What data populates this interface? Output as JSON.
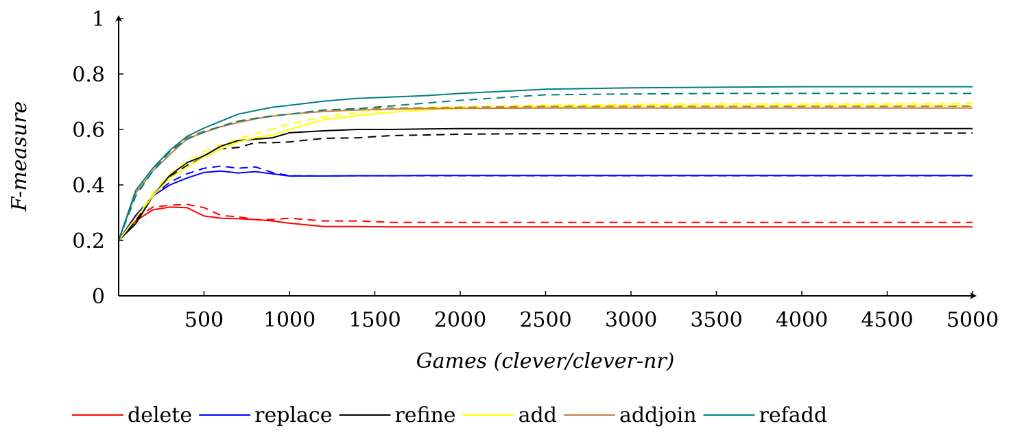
{
  "chart_data": {
    "type": "line",
    "title": "",
    "xlabel": "Games (clever/clever-nr)",
    "ylabel": "F-measure",
    "xlim": [
      0,
      5000
    ],
    "ylim": [
      0,
      1
    ],
    "xticks": [
      500,
      1000,
      1500,
      2000,
      2500,
      3000,
      3500,
      4000,
      4500,
      5000
    ],
    "yticks": [
      0,
      0.2,
      0.4,
      0.6,
      0.8,
      1
    ],
    "xtick_labels": [
      "500",
      "1000",
      "1500",
      "2000",
      "2500",
      "3000",
      "3500",
      "4000",
      "4500",
      "5000"
    ],
    "ytick_labels": [
      "0",
      "0.2",
      "0.4",
      "0.6",
      "0.8",
      "1"
    ],
    "grid": false,
    "legend_position": "bottom",
    "legend": [
      "delete",
      "replace",
      "refine",
      "add",
      "addjoin",
      "refadd"
    ],
    "line_styles": {
      "solid": "clever",
      "dashed": "clever-nr"
    },
    "x": [
      0,
      100,
      200,
      300,
      400,
      500,
      600,
      700,
      800,
      900,
      1000,
      1200,
      1400,
      1600,
      1800,
      2000,
      2500,
      3000,
      3500,
      4000,
      4500,
      5000
    ],
    "series": [
      {
        "name": "delete",
        "variant": "clever",
        "color": "#ff0000",
        "dashed": false,
        "values": [
          0.2,
          0.27,
          0.31,
          0.32,
          0.318,
          0.288,
          0.28,
          0.278,
          0.275,
          0.27,
          0.262,
          0.25,
          0.25,
          0.249,
          0.249,
          0.249,
          0.249,
          0.249,
          0.249,
          0.249,
          0.249,
          0.249
        ]
      },
      {
        "name": "delete",
        "variant": "clever-nr",
        "color": "#ff0000",
        "dashed": true,
        "values": [
          0.2,
          0.28,
          0.32,
          0.327,
          0.33,
          0.318,
          0.29,
          0.285,
          0.275,
          0.275,
          0.28,
          0.27,
          0.27,
          0.265,
          0.265,
          0.265,
          0.265,
          0.265,
          0.265,
          0.265,
          0.265,
          0.265
        ]
      },
      {
        "name": "replace",
        "variant": "clever",
        "color": "#0000ff",
        "dashed": false,
        "values": [
          0.2,
          0.29,
          0.36,
          0.4,
          0.425,
          0.445,
          0.45,
          0.443,
          0.448,
          0.44,
          0.432,
          0.432,
          0.433,
          0.433,
          0.434,
          0.434,
          0.434,
          0.434,
          0.434,
          0.434,
          0.434,
          0.434
        ]
      },
      {
        "name": "replace",
        "variant": "clever-nr",
        "color": "#0000ff",
        "dashed": true,
        "values": [
          0.2,
          0.29,
          0.36,
          0.41,
          0.44,
          0.46,
          0.468,
          0.46,
          0.465,
          0.445,
          0.433,
          0.432,
          0.433,
          0.433,
          0.433,
          0.433,
          0.433,
          0.433,
          0.433,
          0.433,
          0.433,
          0.433
        ]
      },
      {
        "name": "refine",
        "variant": "clever",
        "color": "#000000",
        "dashed": false,
        "values": [
          0.2,
          0.26,
          0.36,
          0.435,
          0.48,
          0.505,
          0.54,
          0.56,
          0.565,
          0.57,
          0.588,
          0.595,
          0.6,
          0.6,
          0.602,
          0.603,
          0.603,
          0.603,
          0.603,
          0.603,
          0.603,
          0.603
        ]
      },
      {
        "name": "refine",
        "variant": "clever-nr",
        "color": "#000000",
        "dashed": true,
        "values": [
          0.2,
          0.27,
          0.36,
          0.43,
          0.47,
          0.5,
          0.53,
          0.535,
          0.552,
          0.552,
          0.555,
          0.568,
          0.57,
          0.578,
          0.58,
          0.583,
          0.585,
          0.585,
          0.586,
          0.586,
          0.586,
          0.587
        ]
      },
      {
        "name": "add",
        "variant": "clever",
        "color": "#ffff00",
        "dashed": false,
        "values": [
          0.2,
          0.28,
          0.36,
          0.425,
          0.465,
          0.5,
          0.53,
          0.555,
          0.57,
          0.58,
          0.6,
          0.635,
          0.65,
          0.662,
          0.67,
          0.675,
          0.682,
          0.685,
          0.685,
          0.686,
          0.686,
          0.686
        ]
      },
      {
        "name": "add",
        "variant": "clever-nr",
        "color": "#ffff00",
        "dashed": true,
        "values": [
          0.2,
          0.28,
          0.37,
          0.44,
          0.485,
          0.52,
          0.545,
          0.565,
          0.585,
          0.6,
          0.62,
          0.645,
          0.66,
          0.675,
          0.68,
          0.682,
          0.688,
          0.69,
          0.692,
          0.692,
          0.692,
          0.693
        ]
      },
      {
        "name": "addjoin",
        "variant": "clever",
        "color": "#c08040",
        "dashed": false,
        "values": [
          0.2,
          0.37,
          0.45,
          0.51,
          0.565,
          0.59,
          0.61,
          0.625,
          0.638,
          0.648,
          0.655,
          0.665,
          0.67,
          0.673,
          0.675,
          0.676,
          0.677,
          0.677,
          0.677,
          0.677,
          0.677,
          0.677
        ]
      },
      {
        "name": "addjoin",
        "variant": "clever-nr",
        "color": "#c08040",
        "dashed": true,
        "values": [
          0.2,
          0.38,
          0.46,
          0.52,
          0.57,
          0.595,
          0.61,
          0.63,
          0.64,
          0.65,
          0.655,
          0.668,
          0.675,
          0.677,
          0.678,
          0.68,
          0.683,
          0.683,
          0.683,
          0.683,
          0.683,
          0.684
        ]
      },
      {
        "name": "refadd",
        "variant": "clever",
        "color": "#008080",
        "dashed": false,
        "values": [
          0.2,
          0.38,
          0.46,
          0.525,
          0.575,
          0.605,
          0.63,
          0.655,
          0.668,
          0.68,
          0.687,
          0.702,
          0.712,
          0.717,
          0.722,
          0.73,
          0.745,
          0.75,
          0.752,
          0.754,
          0.754,
          0.754
        ]
      },
      {
        "name": "refadd",
        "variant": "clever-nr",
        "color": "#008080",
        "dashed": true,
        "values": [
          0.2,
          0.36,
          0.45,
          0.52,
          0.565,
          0.59,
          0.612,
          0.63,
          0.64,
          0.648,
          0.655,
          0.67,
          0.675,
          0.685,
          0.695,
          0.705,
          0.725,
          0.728,
          0.73,
          0.73,
          0.73,
          0.73
        ]
      }
    ]
  }
}
